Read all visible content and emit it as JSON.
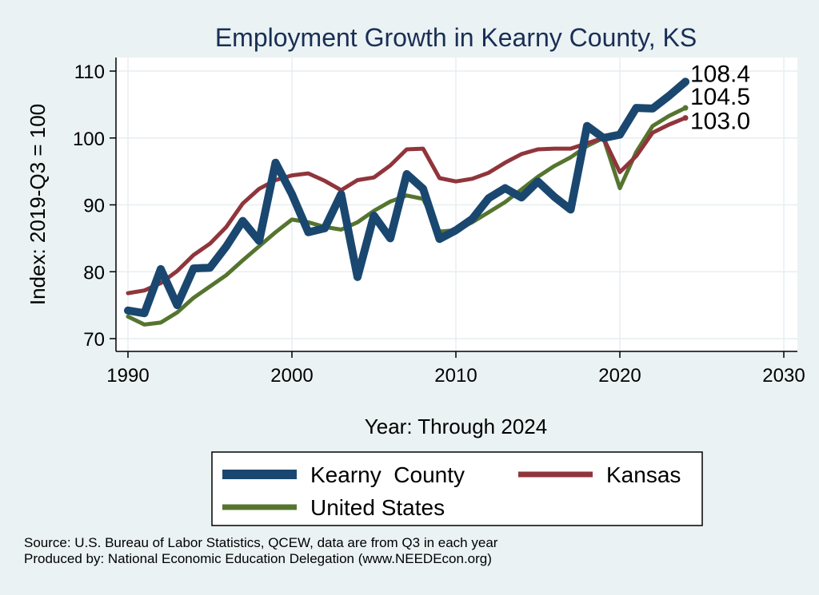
{
  "chart_data": {
    "type": "line",
    "title": "Employment Growth in Kearny County, KS",
    "xlabel": "Year: Through 2024",
    "ylabel": "Index: 2019-Q3 = 100",
    "xlim": [
      1990,
      2030
    ],
    "ylim": [
      70,
      110
    ],
    "x_ticks": [
      1990,
      2000,
      2010,
      2020,
      2030
    ],
    "y_ticks": [
      70,
      80,
      90,
      100,
      110
    ],
    "grid": true,
    "legend_position": "bottom",
    "x": [
      1990,
      1991,
      1992,
      1993,
      1994,
      1995,
      1996,
      1997,
      1998,
      1999,
      2000,
      2001,
      2002,
      2003,
      2004,
      2005,
      2006,
      2007,
      2008,
      2009,
      2010,
      2011,
      2012,
      2013,
      2014,
      2015,
      2016,
      2017,
      2018,
      2019,
      2020,
      2021,
      2022,
      2023,
      2024
    ],
    "series": [
      {
        "name": "Kearny  County",
        "color": "#1a476f",
        "end_label": "108.4",
        "values": [
          74.2,
          73.8,
          80.4,
          75.0,
          80.5,
          80.6,
          83.8,
          87.6,
          84.6,
          96.3,
          91.6,
          85.9,
          86.5,
          91.6,
          79.2,
          88.4,
          85.0,
          94.6,
          92.4,
          84.9,
          86.2,
          87.9,
          91.0,
          92.5,
          91.1,
          93.5,
          91.2,
          89.3,
          101.8,
          100.0,
          100.5,
          104.5,
          104.4,
          106.3,
          108.4
        ]
      },
      {
        "name": "Kansas",
        "color": "#90353b",
        "end_label": "103.0",
        "values": [
          76.8,
          77.2,
          78.3,
          80.1,
          82.5,
          84.2,
          86.7,
          90.2,
          92.4,
          93.7,
          94.4,
          94.7,
          93.6,
          92.2,
          93.7,
          94.1,
          95.9,
          98.3,
          98.4,
          94.0,
          93.5,
          93.9,
          94.8,
          96.3,
          97.6,
          98.3,
          98.4,
          98.4,
          99.2,
          100.0,
          94.9,
          97.3,
          100.8,
          102.0,
          103.0
        ]
      },
      {
        "name": "United States",
        "color": "#55752f",
        "end_label": "104.5",
        "values": [
          73.3,
          72.1,
          72.4,
          73.9,
          76.1,
          77.8,
          79.5,
          81.7,
          83.8,
          85.9,
          87.8,
          87.4,
          86.7,
          86.3,
          87.4,
          89.1,
          90.5,
          91.4,
          90.9,
          86.0,
          86.2,
          87.4,
          88.9,
          90.4,
          92.3,
          94.2,
          95.8,
          97.1,
          98.8,
          100.0,
          92.5,
          97.9,
          101.8,
          103.3,
          104.5
        ]
      }
    ]
  },
  "source_lines": [
    "Source: U.S. Bureau of Labor Statistics, QCEW, data are from Q3 in each year",
    "Produced by: National Economic Education Delegation (www.NEEDEcon.org)"
  ]
}
